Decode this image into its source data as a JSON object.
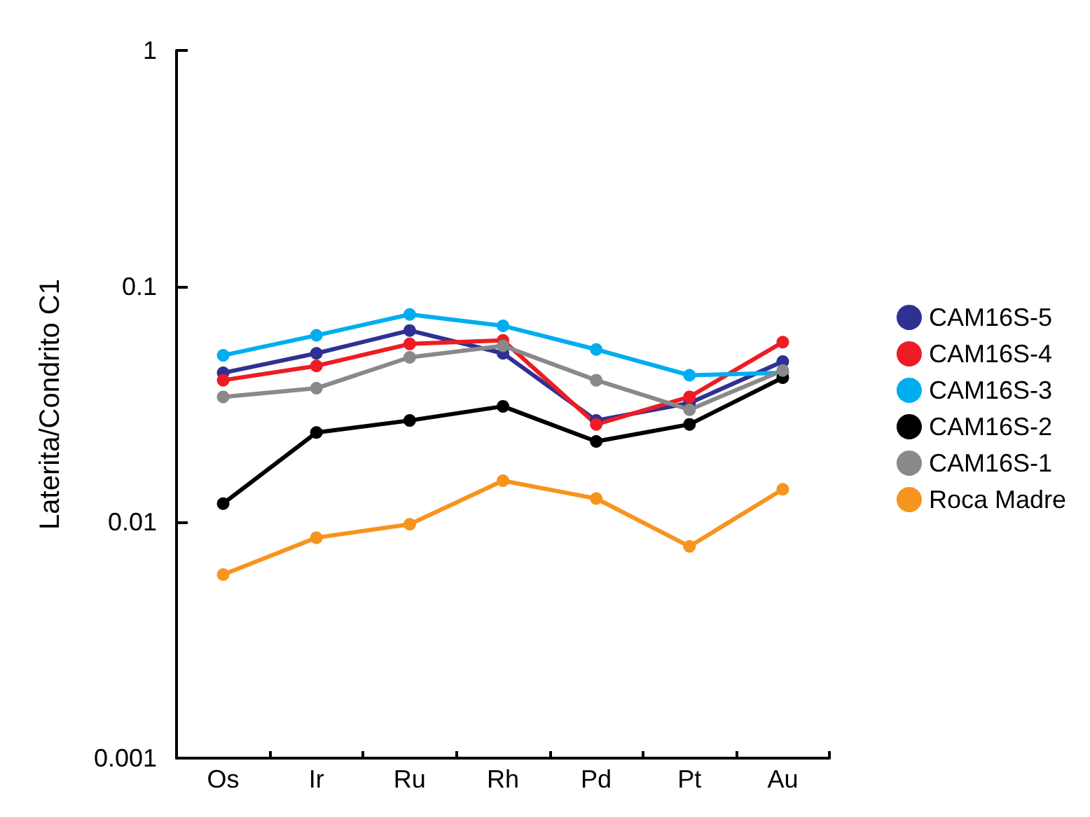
{
  "chart_data": {
    "type": "line",
    "ylabel": "Laterita/Condrito C1",
    "categories": [
      "Os",
      "Ir",
      "Ru",
      "Rh",
      "Pd",
      "Pt",
      "Au"
    ],
    "log": "y",
    "ylim": [
      0.001,
      1
    ],
    "yticks": [
      0.001,
      0.01,
      0.1,
      1
    ],
    "grid": false,
    "legend": "right",
    "marker": "circle",
    "line_style": "solid",
    "series": [
      {
        "name": "CAM16S-5",
        "color": "#2e3192",
        "values": [
          0.043,
          0.052,
          0.065,
          0.052,
          0.027,
          0.032,
          0.048
        ]
      },
      {
        "name": "CAM16S-4",
        "color": "#ed1c24",
        "values": [
          0.04,
          0.046,
          0.057,
          0.059,
          0.026,
          0.034,
          0.058
        ]
      },
      {
        "name": "CAM16S-3",
        "color": "#00aeef",
        "values": [
          0.051,
          0.062,
          0.076,
          0.068,
          0.054,
          0.042,
          0.043
        ]
      },
      {
        "name": "CAM16S-2",
        "color": "#000000",
        "values": [
          0.012,
          0.024,
          0.027,
          0.031,
          0.022,
          0.026,
          0.041
        ]
      },
      {
        "name": "CAM16S-1",
        "color": "#898989",
        "values": [
          0.034,
          0.037,
          0.05,
          0.056,
          0.04,
          0.03,
          0.044
        ]
      },
      {
        "name": "Roca Madre",
        "color": "#f7941d",
        "values": [
          0.006,
          0.0086,
          0.0098,
          0.015,
          0.0126,
          0.0079,
          0.0138
        ]
      }
    ]
  }
}
